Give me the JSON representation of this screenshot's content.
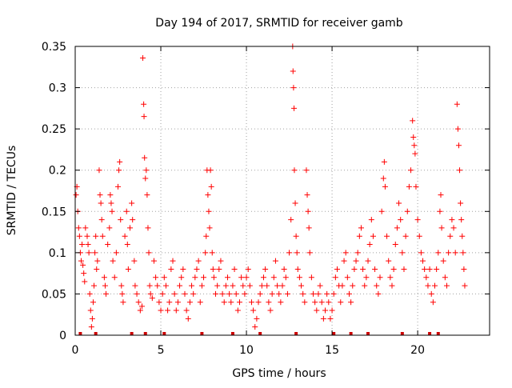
{
  "chart_data": {
    "type": "scatter",
    "title": "Day 194 of 2017, SRMTID for receiver gamb",
    "xlabel": "GPS time / hours",
    "ylabel": "SRMTID / TECUs",
    "xlim": [
      0,
      24.2
    ],
    "ylim": [
      0,
      0.35
    ],
    "xticks": [
      0,
      5,
      10,
      15,
      20
    ],
    "xtick_labels": [
      "0",
      "5",
      "10",
      "15",
      "20"
    ],
    "yticks": [
      0,
      0.05,
      0.1,
      0.15,
      0.2,
      0.25,
      0.3,
      0.35
    ],
    "ytick_labels": [
      "0",
      "0.05",
      "0.1",
      "0.15",
      "0.2",
      "0.25",
      "0.3",
      "0.35"
    ],
    "grid": true,
    "marker": "+",
    "color": "#ff0000",
    "baseline_markers_x": [
      0.3,
      1.2,
      3.3,
      4.1,
      5.2,
      7.4,
      9.2,
      10.8,
      12.9,
      15.1,
      16.1,
      17.1,
      19.1,
      20.7,
      21.2
    ],
    "series": [
      {
        "name": "SRMTID",
        "points": [
          [
            0.05,
            0.17
          ],
          [
            0.1,
            0.18
          ],
          [
            0.15,
            0.15
          ],
          [
            0.2,
            0.13
          ],
          [
            0.25,
            0.12
          ],
          [
            0.3,
            0.1
          ],
          [
            0.35,
            0.09
          ],
          [
            0.4,
            0.11
          ],
          [
            0.45,
            0.085
          ],
          [
            0.5,
            0.075
          ],
          [
            0.55,
            0.065
          ],
          [
            0.6,
            0.13
          ],
          [
            0.7,
            0.12
          ],
          [
            0.75,
            0.11
          ],
          [
            0.8,
            0.1
          ],
          [
            0.85,
            0.05
          ],
          [
            0.9,
            0.03
          ],
          [
            0.95,
            0.01
          ],
          [
            1.0,
            0.02
          ],
          [
            1.05,
            0.04
          ],
          [
            1.1,
            0.06
          ],
          [
            1.15,
            0.1
          ],
          [
            1.2,
            0.12
          ],
          [
            1.25,
            0.08
          ],
          [
            1.3,
            0.09
          ],
          [
            1.4,
            0.2
          ],
          [
            1.45,
            0.17
          ],
          [
            1.5,
            0.16
          ],
          [
            1.55,
            0.14
          ],
          [
            1.6,
            0.12
          ],
          [
            1.7,
            0.07
          ],
          [
            1.75,
            0.06
          ],
          [
            1.8,
            0.05
          ],
          [
            1.9,
            0.11
          ],
          [
            2.0,
            0.13
          ],
          [
            2.05,
            0.17
          ],
          [
            2.1,
            0.16
          ],
          [
            2.15,
            0.15
          ],
          [
            2.2,
            0.09
          ],
          [
            2.3,
            0.07
          ],
          [
            2.4,
            0.1
          ],
          [
            2.5,
            0.18
          ],
          [
            2.55,
            0.2
          ],
          [
            2.6,
            0.21
          ],
          [
            2.65,
            0.14
          ],
          [
            2.7,
            0.06
          ],
          [
            2.75,
            0.05
          ],
          [
            2.8,
            0.04
          ],
          [
            2.9,
            0.12
          ],
          [
            3.0,
            0.15
          ],
          [
            3.05,
            0.11
          ],
          [
            3.1,
            0.08
          ],
          [
            3.2,
            0.13
          ],
          [
            3.3,
            0.16
          ],
          [
            3.35,
            0.14
          ],
          [
            3.45,
            0.09
          ],
          [
            3.5,
            0.06
          ],
          [
            3.6,
            0.05
          ],
          [
            3.7,
            0.04
          ],
          [
            3.8,
            0.03
          ],
          [
            3.9,
            0.035
          ],
          [
            3.95,
            0.336
          ],
          [
            4.0,
            0.28
          ],
          [
            4.02,
            0.265
          ],
          [
            4.05,
            0.215
          ],
          [
            4.1,
            0.19
          ],
          [
            4.15,
            0.2
          ],
          [
            4.2,
            0.17
          ],
          [
            4.25,
            0.13
          ],
          [
            4.3,
            0.1
          ],
          [
            4.35,
            0.06
          ],
          [
            4.4,
            0.05
          ],
          [
            4.5,
            0.045
          ],
          [
            4.6,
            0.09
          ],
          [
            4.7,
            0.07
          ],
          [
            4.8,
            0.06
          ],
          [
            4.9,
            0.04
          ],
          [
            5.0,
            0.03
          ],
          [
            5.1,
            0.05
          ],
          [
            5.2,
            0.07
          ],
          [
            5.3,
            0.06
          ],
          [
            5.4,
            0.03
          ],
          [
            5.5,
            0.04
          ],
          [
            5.6,
            0.08
          ],
          [
            5.7,
            0.09
          ],
          [
            5.8,
            0.05
          ],
          [
            5.9,
            0.03
          ],
          [
            6.0,
            0.04
          ],
          [
            6.1,
            0.06
          ],
          [
            6.2,
            0.07
          ],
          [
            6.3,
            0.08
          ],
          [
            6.4,
            0.05
          ],
          [
            6.5,
            0.03
          ],
          [
            6.6,
            0.02
          ],
          [
            6.7,
            0.04
          ],
          [
            6.8,
            0.06
          ],
          [
            6.9,
            0.05
          ],
          [
            7.0,
            0.07
          ],
          [
            7.1,
            0.08
          ],
          [
            7.2,
            0.09
          ],
          [
            7.3,
            0.04
          ],
          [
            7.4,
            0.06
          ],
          [
            7.5,
            0.07
          ],
          [
            7.6,
            0.1
          ],
          [
            7.65,
            0.12
          ],
          [
            7.7,
            0.2
          ],
          [
            7.75,
            0.17
          ],
          [
            7.8,
            0.15
          ],
          [
            7.85,
            0.13
          ],
          [
            7.9,
            0.2
          ],
          [
            7.95,
            0.18
          ],
          [
            8.0,
            0.1
          ],
          [
            8.05,
            0.08
          ],
          [
            8.1,
            0.07
          ],
          [
            8.2,
            0.05
          ],
          [
            8.3,
            0.06
          ],
          [
            8.4,
            0.08
          ],
          [
            8.5,
            0.09
          ],
          [
            8.6,
            0.05
          ],
          [
            8.7,
            0.04
          ],
          [
            8.8,
            0.06
          ],
          [
            8.9,
            0.07
          ],
          [
            9.0,
            0.05
          ],
          [
            9.1,
            0.04
          ],
          [
            9.2,
            0.06
          ],
          [
            9.3,
            0.08
          ],
          [
            9.4,
            0.05
          ],
          [
            9.5,
            0.03
          ],
          [
            9.6,
            0.04
          ],
          [
            9.7,
            0.07
          ],
          [
            9.8,
            0.06
          ],
          [
            9.9,
            0.05
          ],
          [
            10.0,
            0.07
          ],
          [
            10.1,
            0.08
          ],
          [
            10.2,
            0.06
          ],
          [
            10.3,
            0.04
          ],
          [
            10.4,
            0.03
          ],
          [
            10.5,
            0.01
          ],
          [
            10.6,
            0.02
          ],
          [
            10.7,
            0.04
          ],
          [
            10.8,
            0.05
          ],
          [
            10.9,
            0.06
          ],
          [
            11.0,
            0.07
          ],
          [
            11.1,
            0.08
          ],
          [
            11.2,
            0.06
          ],
          [
            11.3,
            0.04
          ],
          [
            11.4,
            0.03
          ],
          [
            11.5,
            0.05
          ],
          [
            11.6,
            0.07
          ],
          [
            11.7,
            0.09
          ],
          [
            11.8,
            0.06
          ],
          [
            11.9,
            0.05
          ],
          [
            12.0,
            0.04
          ],
          [
            12.1,
            0.06
          ],
          [
            12.2,
            0.08
          ],
          [
            12.3,
            0.07
          ],
          [
            12.4,
            0.05
          ],
          [
            12.5,
            0.1
          ],
          [
            12.6,
            0.14
          ],
          [
            12.7,
            0.35
          ],
          [
            12.72,
            0.32
          ],
          [
            12.75,
            0.3
          ],
          [
            12.78,
            0.275
          ],
          [
            12.8,
            0.2
          ],
          [
            12.85,
            0.16
          ],
          [
            12.9,
            0.12
          ],
          [
            12.95,
            0.1
          ],
          [
            13.0,
            0.08
          ],
          [
            13.1,
            0.07
          ],
          [
            13.2,
            0.06
          ],
          [
            13.3,
            0.05
          ],
          [
            13.4,
            0.04
          ],
          [
            13.5,
            0.2
          ],
          [
            13.55,
            0.17
          ],
          [
            13.6,
            0.15
          ],
          [
            13.65,
            0.13
          ],
          [
            13.7,
            0.1
          ],
          [
            13.8,
            0.07
          ],
          [
            13.9,
            0.05
          ],
          [
            14.0,
            0.04
          ],
          [
            14.1,
            0.03
          ],
          [
            14.2,
            0.05
          ],
          [
            14.3,
            0.06
          ],
          [
            14.4,
            0.04
          ],
          [
            14.5,
            0.02
          ],
          [
            14.6,
            0.03
          ],
          [
            14.7,
            0.05
          ],
          [
            14.8,
            0.04
          ],
          [
            14.9,
            0.02
          ],
          [
            15.0,
            0.03
          ],
          [
            15.1,
            0.05
          ],
          [
            15.2,
            0.07
          ],
          [
            15.3,
            0.08
          ],
          [
            15.4,
            0.06
          ],
          [
            15.5,
            0.04
          ],
          [
            15.6,
            0.06
          ],
          [
            15.7,
            0.09
          ],
          [
            15.8,
            0.1
          ],
          [
            15.9,
            0.07
          ],
          [
            16.0,
            0.05
          ],
          [
            16.1,
            0.04
          ],
          [
            16.2,
            0.06
          ],
          [
            16.3,
            0.08
          ],
          [
            16.4,
            0.09
          ],
          [
            16.5,
            0.1
          ],
          [
            16.6,
            0.12
          ],
          [
            16.7,
            0.13
          ],
          [
            16.8,
            0.08
          ],
          [
            16.9,
            0.06
          ],
          [
            17.0,
            0.07
          ],
          [
            17.1,
            0.09
          ],
          [
            17.2,
            0.11
          ],
          [
            17.3,
            0.14
          ],
          [
            17.4,
            0.12
          ],
          [
            17.5,
            0.08
          ],
          [
            17.6,
            0.06
          ],
          [
            17.7,
            0.05
          ],
          [
            17.8,
            0.07
          ],
          [
            17.9,
            0.15
          ],
          [
            18.0,
            0.19
          ],
          [
            18.05,
            0.21
          ],
          [
            18.1,
            0.18
          ],
          [
            18.2,
            0.12
          ],
          [
            18.3,
            0.09
          ],
          [
            18.4,
            0.07
          ],
          [
            18.5,
            0.06
          ],
          [
            18.6,
            0.08
          ],
          [
            18.7,
            0.11
          ],
          [
            18.8,
            0.13
          ],
          [
            18.9,
            0.16
          ],
          [
            19.0,
            0.14
          ],
          [
            19.1,
            0.1
          ],
          [
            19.2,
            0.08
          ],
          [
            19.3,
            0.12
          ],
          [
            19.4,
            0.15
          ],
          [
            19.5,
            0.18
          ],
          [
            19.6,
            0.2
          ],
          [
            19.7,
            0.26
          ],
          [
            19.75,
            0.24
          ],
          [
            19.8,
            0.23
          ],
          [
            19.85,
            0.22
          ],
          [
            19.9,
            0.18
          ],
          [
            20.0,
            0.14
          ],
          [
            20.1,
            0.12
          ],
          [
            20.2,
            0.1
          ],
          [
            20.3,
            0.09
          ],
          [
            20.4,
            0.08
          ],
          [
            20.5,
            0.07
          ],
          [
            20.6,
            0.06
          ],
          [
            20.7,
            0.08
          ],
          [
            20.8,
            0.05
          ],
          [
            20.9,
            0.04
          ],
          [
            21.0,
            0.06
          ],
          [
            21.1,
            0.08
          ],
          [
            21.2,
            0.1
          ],
          [
            21.3,
            0.15
          ],
          [
            21.35,
            0.17
          ],
          [
            21.4,
            0.13
          ],
          [
            21.5,
            0.09
          ],
          [
            21.6,
            0.07
          ],
          [
            21.7,
            0.06
          ],
          [
            21.8,
            0.1
          ],
          [
            21.9,
            0.12
          ],
          [
            22.0,
            0.14
          ],
          [
            22.1,
            0.13
          ],
          [
            22.2,
            0.1
          ],
          [
            22.3,
            0.28
          ],
          [
            22.35,
            0.25
          ],
          [
            22.4,
            0.23
          ],
          [
            22.45,
            0.2
          ],
          [
            22.5,
            0.16
          ],
          [
            22.55,
            0.14
          ],
          [
            22.6,
            0.12
          ],
          [
            22.65,
            0.1
          ],
          [
            22.7,
            0.08
          ],
          [
            22.75,
            0.06
          ]
        ]
      }
    ]
  }
}
